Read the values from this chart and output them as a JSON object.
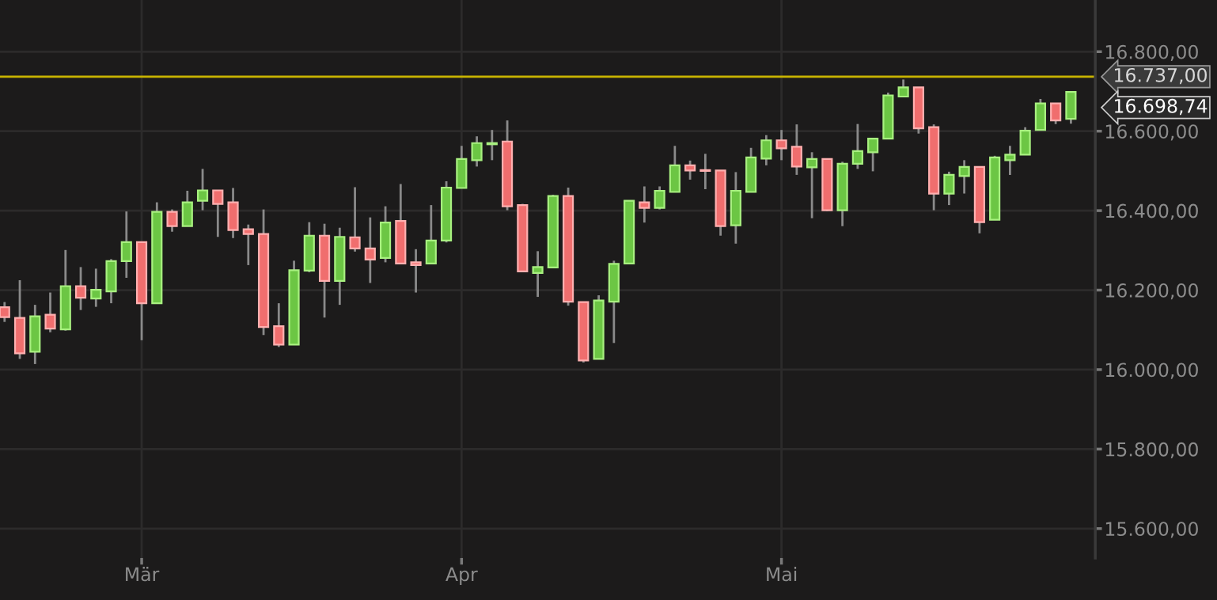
{
  "chart_data": {
    "type": "candlestick",
    "categories": [
      null,
      null,
      null,
      null,
      null,
      null,
      null,
      null,
      null,
      "Mär",
      null,
      null,
      null,
      null,
      null,
      null,
      null,
      null,
      null,
      null,
      null,
      null,
      null,
      null,
      null,
      null,
      null,
      null,
      null,
      null,
      "Apr",
      null,
      null,
      null,
      null,
      null,
      null,
      null,
      null,
      null,
      null,
      null,
      null,
      null,
      null,
      null,
      null,
      null,
      null,
      null,
      null,
      "Mai",
      null,
      null,
      null,
      null,
      null,
      null,
      null,
      null,
      null,
      null,
      null,
      null,
      null,
      null,
      null,
      null,
      null,
      null,
      null
    ],
    "ohlc": [
      [
        16157,
        16170,
        16120,
        16132
      ],
      [
        16130,
        16225,
        16027,
        16041
      ],
      [
        16045,
        16163,
        16014,
        16134
      ],
      [
        16138,
        16194,
        16094,
        16103
      ],
      [
        16101,
        16301,
        16098,
        16210
      ],
      [
        16210,
        16258,
        16150,
        16181
      ],
      [
        16179,
        16254,
        16158,
        16201
      ],
      [
        16197,
        16278,
        16167,
        16273
      ],
      [
        16273,
        16398,
        16231,
        16321
      ],
      [
        16321,
        16321,
        16074,
        16167
      ],
      [
        16167,
        16421,
        16167,
        16397
      ],
      [
        16397,
        16403,
        16347,
        16361
      ],
      [
        16361,
        16450,
        16361,
        16421
      ],
      [
        16425,
        16505,
        16401,
        16451
      ],
      [
        16451,
        16451,
        16334,
        16417
      ],
      [
        16421,
        16457,
        16331,
        16351
      ],
      [
        16353,
        16365,
        16263,
        16341
      ],
      [
        16341,
        16403,
        16087,
        16107
      ],
      [
        16109,
        16167,
        16057,
        16063
      ],
      [
        16063,
        16274,
        16063,
        16250
      ],
      [
        16249,
        16371,
        16245,
        16337
      ],
      [
        16337,
        16367,
        16131,
        16223
      ],
      [
        16223,
        16357,
        16163,
        16334
      ],
      [
        16333,
        16459,
        16297,
        16305
      ],
      [
        16305,
        16383,
        16218,
        16277
      ],
      [
        16281,
        16411,
        16270,
        16370
      ],
      [
        16374,
        16467,
        16267,
        16267
      ],
      [
        16270,
        16303,
        16194,
        16263
      ],
      [
        16267,
        16414,
        16267,
        16325
      ],
      [
        16325,
        16474,
        16320,
        16458
      ],
      [
        16457,
        16563,
        16457,
        16530
      ],
      [
        16527,
        16587,
        16511,
        16570
      ],
      [
        16567,
        16603,
        16527,
        16570
      ],
      [
        16574,
        16627,
        16401,
        16411
      ],
      [
        16414,
        16417,
        16245,
        16247
      ],
      [
        16243,
        16298,
        16183,
        16258
      ],
      [
        16257,
        16440,
        16255,
        16437
      ],
      [
        16437,
        16458,
        16161,
        16171
      ],
      [
        16170,
        16170,
        16018,
        16023
      ],
      [
        16027,
        16187,
        16027,
        16174
      ],
      [
        16171,
        16274,
        16067,
        16266
      ],
      [
        16267,
        16425,
        16267,
        16425
      ],
      [
        16421,
        16461,
        16370,
        16407
      ],
      [
        16407,
        16461,
        16403,
        16450
      ],
      [
        16447,
        16563,
        16447,
        16514
      ],
      [
        16514,
        16526,
        16478,
        16501
      ],
      [
        16502,
        16543,
        16454,
        16500
      ],
      [
        16501,
        16501,
        16337,
        16361
      ],
      [
        16363,
        16497,
        16317,
        16450
      ],
      [
        16447,
        16558,
        16447,
        16534
      ],
      [
        16531,
        16590,
        16514,
        16577
      ],
      [
        16577,
        16603,
        16527,
        16557
      ],
      [
        16561,
        16617,
        16490,
        16511
      ],
      [
        16509,
        16547,
        16381,
        16530
      ],
      [
        16530,
        16530,
        16399,
        16401
      ],
      [
        16401,
        16523,
        16361,
        16518
      ],
      [
        16518,
        16618,
        16505,
        16550
      ],
      [
        16547,
        16583,
        16499,
        16581
      ],
      [
        16581,
        16697,
        16581,
        16690
      ],
      [
        16687,
        16730,
        16687,
        16710
      ],
      [
        16710,
        16710,
        16594,
        16607
      ],
      [
        16610,
        16617,
        16401,
        16443
      ],
      [
        16443,
        16498,
        16414,
        16490
      ],
      [
        16487,
        16527,
        16443,
        16510
      ],
      [
        16510,
        16510,
        16343,
        16371
      ],
      [
        16377,
        16538,
        16377,
        16534
      ],
      [
        16527,
        16563,
        16490,
        16541
      ],
      [
        16541,
        16610,
        16541,
        16601
      ],
      [
        16603,
        16681,
        16603,
        16670
      ],
      [
        16670,
        16670,
        16618,
        16627
      ],
      [
        16631,
        16700,
        16619,
        16698.74
      ]
    ],
    "ylim": [
      15526,
      16930
    ],
    "yticks": [
      {
        "value": 15600,
        "label": "15.600,00"
      },
      {
        "value": 15800,
        "label": "15.800,00"
      },
      {
        "value": 16000,
        "label": "16.000,00"
      },
      {
        "value": 16200,
        "label": "16.200,00"
      },
      {
        "value": 16400,
        "label": "16.400,00"
      },
      {
        "value": 16600,
        "label": "16.600,00"
      },
      {
        "value": 16800,
        "label": "16.800,00"
      }
    ],
    "grid": true,
    "ref_lines": [
      {
        "axis": "y",
        "value": 16737,
        "label": "16.737,00",
        "color": "#c8b400"
      }
    ],
    "annotations": [
      "16.698,74"
    ]
  }
}
